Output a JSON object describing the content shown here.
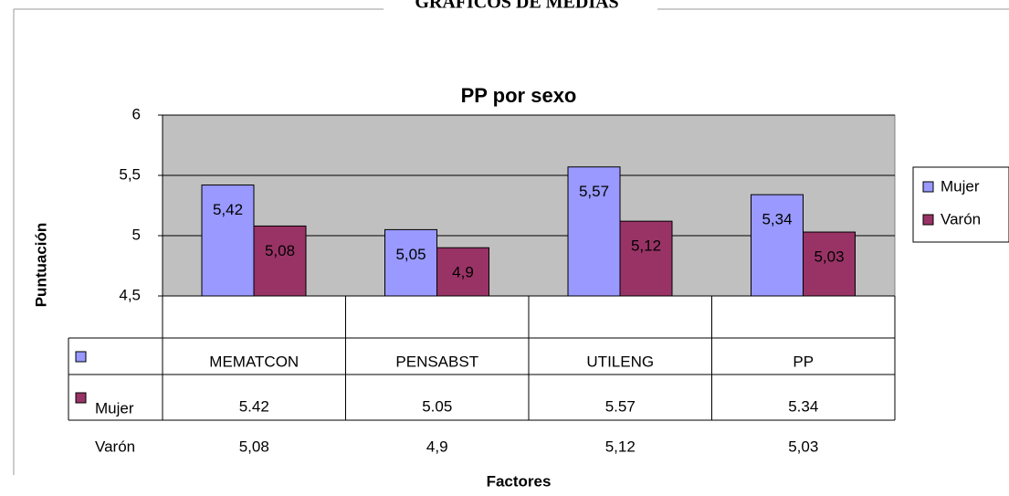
{
  "heading": "GRÁFICOS  DE MEDIAS",
  "chart_data": {
    "type": "bar",
    "title": "PP por sexo",
    "x_label": "Factores",
    "y_label": "Puntuación",
    "categories": [
      "MEMATCON",
      "PENSABST",
      "UTILENG",
      "PP"
    ],
    "series": [
      {
        "name": "Mujer",
        "color": "#9999ff",
        "values": [
          5.42,
          5.05,
          5.57,
          5.34
        ],
        "value_labels": [
          "5,42",
          "5,05",
          "5,57",
          "5,34"
        ]
      },
      {
        "name": "Varón",
        "color": "#993366",
        "values": [
          5.08,
          4.9,
          5.12,
          5.03
        ],
        "value_labels": [
          "5,08",
          "4,9",
          "5,12",
          "5,03"
        ]
      }
    ],
    "ylim": [
      4.5,
      6
    ],
    "yticks": [
      {
        "value": 4.5,
        "label": "4,5"
      },
      5,
      {
        "value": 5.5,
        "label": "5,5"
      },
      6
    ],
    "grid": true,
    "legend": "right",
    "plot_background": "#c0c0c0",
    "data_table": true
  }
}
